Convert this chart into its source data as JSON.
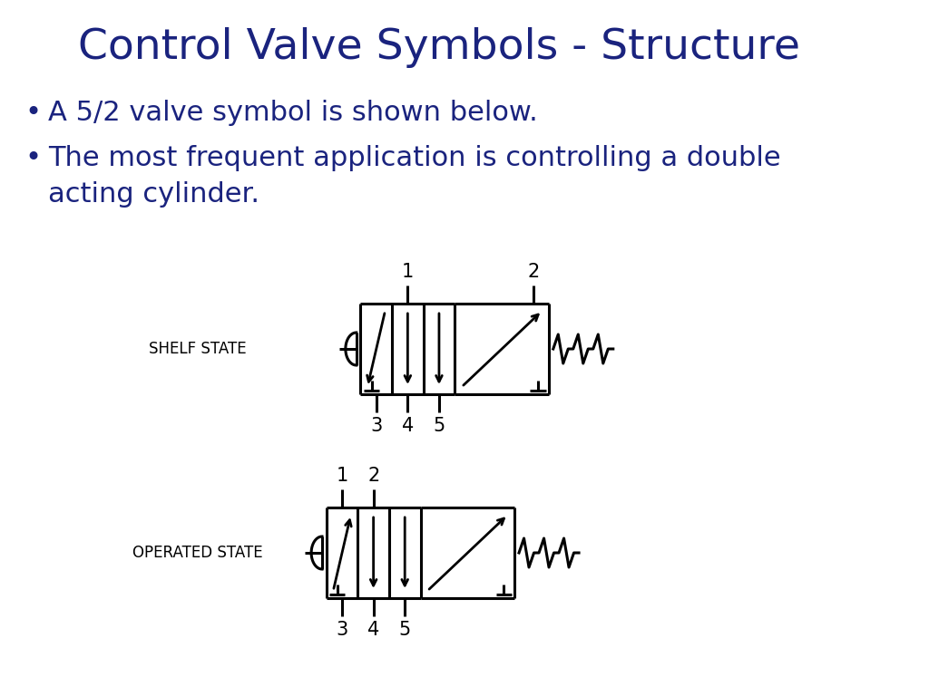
{
  "title": "Control Valve Symbols - Structure",
  "title_color": "#1a237e",
  "title_fontsize": 34,
  "bullet1": "A 5/2 valve symbol is shown below.",
  "bullet2_line1": "The most frequent application is controlling a double",
  "bullet2_line2": "acting cylinder.",
  "bullet_fontsize": 22,
  "bullet_color": "#1a237e",
  "port_label_color": "#000000",
  "diagram_color": "#000000",
  "shelf_state_label": "SHELF STATE",
  "operated_state_label": "OPERATED STATE",
  "bg_color": "#ffffff",
  "lw": 2.2,
  "arrow_lw": 2.0,
  "spring_lw": 2.2,
  "port_label_fs": 15,
  "state_label_fs": 12
}
